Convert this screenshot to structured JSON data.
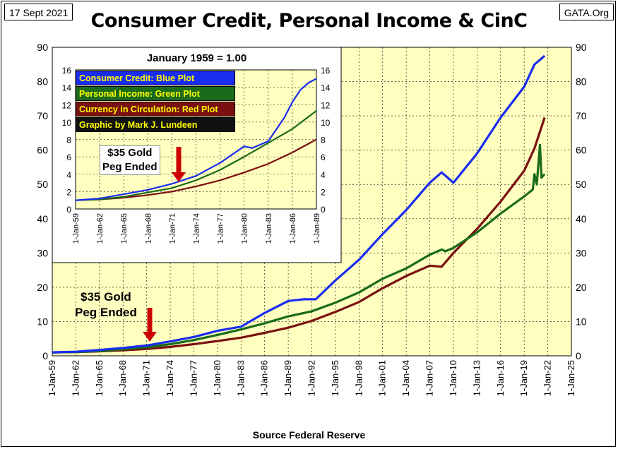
{
  "header": {
    "date": "17 Sept 2021",
    "site": "GATA.Org",
    "title": "Consumer Credit, Personal Income & CinC"
  },
  "footer": {
    "source": "Source Federal Reserve"
  },
  "annotations": {
    "main_peg": [
      "$35 Gold",
      "Peg Ended"
    ],
    "inset_peg": [
      "$35 Gold",
      "Peg Ended"
    ]
  },
  "colors": {
    "plot_bg": "#ffffc0",
    "consumer_credit": "#1a2cf0",
    "personal_income": "#1a6b1a",
    "currency": "#7a1010",
    "arrow": "#cc0000"
  },
  "chart_data": [
    {
      "type": "line",
      "title": "Consumer Credit, Personal Income & CinC",
      "x_ticks": [
        "1-Jan-59",
        "1-Jan-62",
        "1-Jan-65",
        "1-Jan-68",
        "1-Jan-71",
        "1-Jan-74",
        "1-Jan-77",
        "1-Jan-80",
        "1-Jan-83",
        "1-Jan-86",
        "1-Jan-89",
        "1-Jan-92",
        "1-Jan-95",
        "1-Jan-98",
        "1-Jan-01",
        "1-Jan-04",
        "1-Jan-07",
        "1-Jan-10",
        "1-Jan-13",
        "1-Jan-16",
        "1-Jan-19",
        "1-Jan-22",
        "1-Jan-25"
      ],
      "y_ticks": [
        0,
        10,
        20,
        30,
        40,
        50,
        60,
        70,
        80,
        90
      ],
      "ylim": [
        0,
        90
      ],
      "xlim": [
        1959,
        2025
      ],
      "grid": true,
      "series": [
        {
          "key": "consumer_credit",
          "x": [
            1959,
            1962,
            1965,
            1968,
            1971,
            1974,
            1977,
            1980,
            1983,
            1986,
            1989,
            1991,
            1992.5,
            1995,
            1998,
            2001,
            2004,
            2007,
            2008.5,
            2010,
            2013,
            2016,
            2019,
            2020.3,
            2021.6
          ],
          "values": [
            1.0,
            1.2,
            1.7,
            2.3,
            3.0,
            4.2,
            5.5,
            7.3,
            8.5,
            12.5,
            16.0,
            16.5,
            16.5,
            22.0,
            28.0,
            35.5,
            42.5,
            50.5,
            53.5,
            50.5,
            59.0,
            69.5,
            78.5,
            85.0,
            87.5
          ]
        },
        {
          "key": "personal_income",
          "x": [
            1959,
            1962,
            1965,
            1968,
            1971,
            1974,
            1977,
            1980,
            1983,
            1986,
            1989,
            1992,
            1995,
            1998,
            2001,
            2004,
            2007,
            2008.5,
            2009,
            2010,
            2013,
            2016,
            2019,
            2020.1,
            2020.3,
            2020.6,
            2021.0,
            2021.2,
            2021.6
          ],
          "values": [
            1.0,
            1.1,
            1.4,
            1.9,
            2.5,
            3.4,
            4.6,
            6.1,
            7.7,
            9.5,
            11.5,
            13.0,
            15.5,
            18.5,
            22.5,
            25.5,
            29.5,
            31.0,
            30.5,
            31.5,
            36.0,
            41.5,
            46.5,
            48.5,
            53.0,
            50.0,
            61.5,
            52.0,
            53.0
          ]
        },
        {
          "key": "currency",
          "x": [
            1959,
            1962,
            1965,
            1968,
            1971,
            1974,
            1977,
            1980,
            1983,
            1986,
            1989,
            1992,
            1995,
            1998,
            2001,
            2004,
            2007,
            2008.5,
            2010,
            2013,
            2016,
            2019,
            2020.3,
            2021.6
          ],
          "values": [
            1.0,
            1.1,
            1.3,
            1.6,
            2.0,
            2.6,
            3.4,
            4.3,
            5.3,
            6.7,
            8.2,
            10.2,
            12.8,
            15.7,
            19.7,
            23.3,
            26.3,
            26.0,
            30.0,
            37.0,
            45.0,
            54.0,
            60.5,
            69.5
          ]
        }
      ]
    },
    {
      "type": "line",
      "title": "January 1959 = 1.00",
      "x_ticks": [
        "1-Jan-59",
        "1-Jan-62",
        "1-Jan-65",
        "1-Jan-68",
        "1-Jan-71",
        "1-Jan-74",
        "1-Jan-77",
        "1-Jan-80",
        "1-Jan-83",
        "1-Jan-86",
        "1-Jan-89"
      ],
      "y_ticks": [
        0,
        2,
        4,
        6,
        8,
        10,
        12,
        14,
        16
      ],
      "ylim": [
        0,
        16
      ],
      "xlim": [
        1959,
        1989
      ],
      "grid": true,
      "legend": [
        "Consumer Credit:  Blue Plot",
        "Personal Income:  Green Plot",
        "Currency in Circulation: Red Plot",
        "Graphic by Mark J. Lundeen"
      ],
      "series": [
        {
          "key": "consumer_credit",
          "x": [
            1959,
            1962,
            1965,
            1968,
            1971,
            1974,
            1977,
            1980,
            1981,
            1983,
            1985,
            1986,
            1987,
            1988,
            1989
          ],
          "values": [
            1.0,
            1.2,
            1.7,
            2.2,
            2.9,
            3.8,
            5.3,
            7.2,
            7.0,
            7.8,
            10.5,
            12.3,
            13.7,
            14.5,
            15.0
          ]
        },
        {
          "key": "personal_income",
          "x": [
            1959,
            1962,
            1965,
            1968,
            1971,
            1974,
            1977,
            1980,
            1983,
            1986,
            1989
          ],
          "values": [
            1.0,
            1.1,
            1.4,
            1.9,
            2.4,
            3.3,
            4.5,
            6.0,
            7.6,
            9.2,
            11.3
          ]
        },
        {
          "key": "currency",
          "x": [
            1959,
            1962,
            1965,
            1968,
            1971,
            1974,
            1977,
            1980,
            1983,
            1986,
            1989
          ],
          "values": [
            1.0,
            1.1,
            1.3,
            1.6,
            2.0,
            2.6,
            3.3,
            4.2,
            5.2,
            6.5,
            8.0
          ]
        }
      ]
    }
  ]
}
